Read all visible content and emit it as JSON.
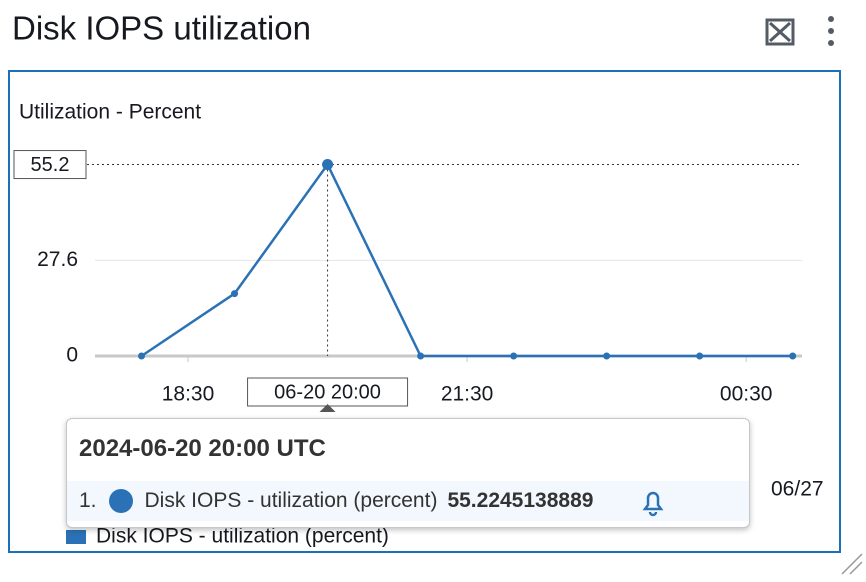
{
  "widget_title": "Disk IOPS utilization",
  "chart_data": {
    "type": "line",
    "y_label": "Utilization - Percent",
    "x": [
      18,
      19,
      20,
      21,
      22,
      23,
      24,
      25
    ],
    "xlim": [
      17.5,
      25.1
    ],
    "xticks": [
      {
        "value": 18.5,
        "label": "18:30"
      },
      {
        "value": 21.5,
        "label": "21:30"
      },
      {
        "value": 24.5,
        "label": "00:30"
      }
    ],
    "ylim": [
      0,
      60
    ],
    "yticks": [
      0,
      27.6
    ],
    "grid": true,
    "series": [
      {
        "name": "Disk IOPS - utilization (percent)",
        "color": "#2a72b5",
        "values": [
          0,
          18,
          55.2245138889,
          0,
          0,
          0,
          0,
          0
        ]
      }
    ],
    "hover": {
      "index": 2,
      "x_label": "06-20 20:00",
      "y_label": "55.2",
      "title": "2024-06-20 20:00 UTC",
      "item_number": "1."
    },
    "overview_label": "06/27"
  }
}
